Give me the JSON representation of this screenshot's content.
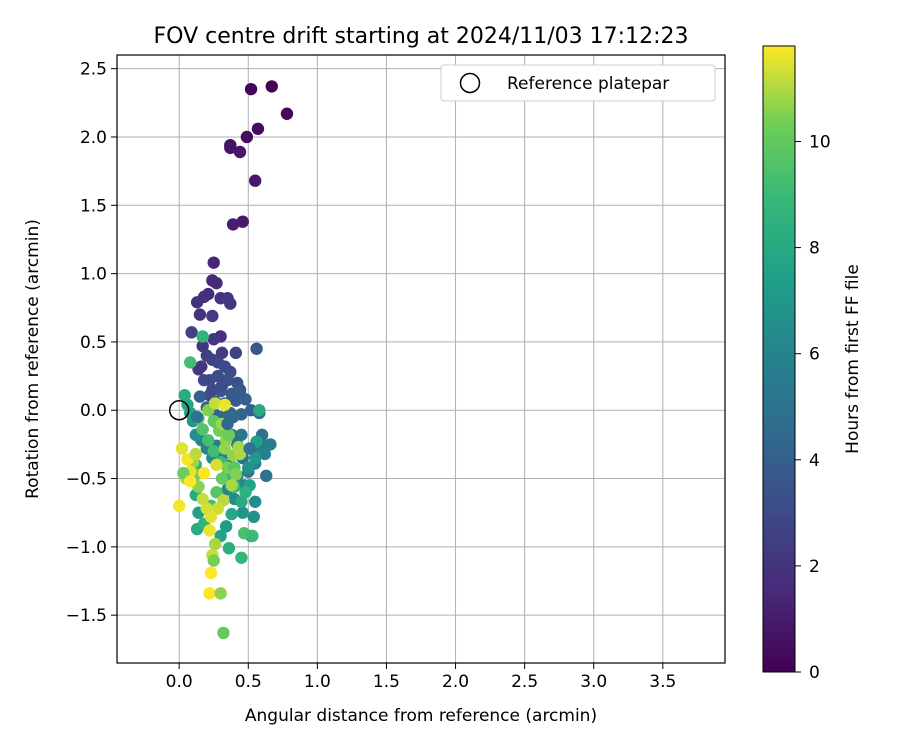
{
  "chart_data": {
    "type": "scatter",
    "title": "FOV centre drift starting at 2024/11/03 17:12:23",
    "xlabel": "Angular distance from reference (arcmin)",
    "ylabel": "Rotation from reference (arcmin)",
    "xlim": [
      -0.45,
      3.95
    ],
    "ylim": [
      -1.85,
      2.6
    ],
    "x_ticks": [
      0.0,
      0.5,
      1.0,
      1.5,
      2.0,
      2.5,
      3.0,
      3.5
    ],
    "y_ticks": [
      -1.5,
      -1.0,
      -0.5,
      0.0,
      0.5,
      1.0,
      1.5,
      2.0,
      2.5
    ],
    "grid": true,
    "legend": {
      "position": "top-right",
      "entries": [
        "Reference platepar"
      ]
    },
    "reference_point": {
      "x": 0.0,
      "y": 0.0,
      "marker": "open-circle"
    },
    "colorbar": {
      "label": "Hours from first FF file",
      "range": [
        0,
        11.8
      ],
      "ticks": [
        0,
        2,
        4,
        6,
        8,
        10
      ],
      "colormap": "viridis"
    },
    "series": [
      {
        "points": [
          [
            0.67,
            2.37,
            0.1
          ],
          [
            0.52,
            2.35,
            0.2
          ],
          [
            0.78,
            2.17,
            0.3
          ],
          [
            0.57,
            2.06,
            0.4
          ],
          [
            0.49,
            2.0,
            0.5
          ],
          [
            0.37,
            1.94,
            0.6
          ],
          [
            0.37,
            1.92,
            0.7
          ],
          [
            0.44,
            1.89,
            0.8
          ],
          [
            0.55,
            1.68,
            0.9
          ],
          [
            0.46,
            1.38,
            1.0
          ],
          [
            0.39,
            1.36,
            1.1
          ],
          [
            0.25,
            1.08,
            1.4
          ],
          [
            0.24,
            0.95,
            1.5
          ],
          [
            0.27,
            0.93,
            1.6
          ],
          [
            0.21,
            0.85,
            1.7
          ],
          [
            0.18,
            0.83,
            1.8
          ],
          [
            0.13,
            0.79,
            1.9
          ],
          [
            0.3,
            0.82,
            2.0
          ],
          [
            0.35,
            0.82,
            2.1
          ],
          [
            0.37,
            0.78,
            2.2
          ],
          [
            0.15,
            0.7,
            1.9
          ],
          [
            0.24,
            0.69,
            2.3
          ],
          [
            0.09,
            0.57,
            2.6
          ],
          [
            0.3,
            0.54,
            1.8
          ],
          [
            0.25,
            0.52,
            2.1
          ],
          [
            0.17,
            0.47,
            2.2
          ],
          [
            0.31,
            0.42,
            2.4
          ],
          [
            0.41,
            0.42,
            2.7
          ],
          [
            0.56,
            0.45,
            3.6
          ],
          [
            0.2,
            0.4,
            2.5
          ],
          [
            0.24,
            0.37,
            2.6
          ],
          [
            0.28,
            0.35,
            2.8
          ],
          [
            0.33,
            0.32,
            3.0
          ],
          [
            0.37,
            0.28,
            3.0
          ],
          [
            0.16,
            0.32,
            2.3
          ],
          [
            0.14,
            0.3,
            2.2
          ],
          [
            0.22,
            0.22,
            3.1
          ],
          [
            0.28,
            0.25,
            3.2
          ],
          [
            0.35,
            0.22,
            3.3
          ],
          [
            0.42,
            0.2,
            3.4
          ],
          [
            0.44,
            0.15,
            3.6
          ],
          [
            0.38,
            0.12,
            3.7
          ],
          [
            0.3,
            0.14,
            3.5
          ],
          [
            0.22,
            0.11,
            3.3
          ],
          [
            0.26,
            0.06,
            3.4
          ],
          [
            0.33,
            0.05,
            3.6
          ],
          [
            0.41,
            0.07,
            3.8
          ],
          [
            0.48,
            0.08,
            4.0
          ],
          [
            0.52,
            0.0,
            4.2
          ],
          [
            0.45,
            -0.03,
            4.3
          ],
          [
            0.37,
            -0.02,
            4.1
          ],
          [
            0.3,
            -0.05,
            4.5
          ],
          [
            0.25,
            -0.02,
            4.4
          ],
          [
            0.2,
            0.02,
            3.9
          ],
          [
            0.58,
            -0.02,
            4.8
          ],
          [
            0.6,
            -0.18,
            5.0
          ],
          [
            0.56,
            -0.25,
            5.2
          ],
          [
            0.6,
            -0.25,
            5.4
          ],
          [
            0.66,
            -0.25,
            5.5
          ],
          [
            0.62,
            -0.32,
            5.8
          ],
          [
            0.57,
            -0.32,
            5.7
          ],
          [
            0.55,
            -0.39,
            5.9
          ],
          [
            0.63,
            -0.48,
            5.0
          ],
          [
            0.5,
            -0.45,
            5.6
          ],
          [
            0.46,
            -0.35,
            5.1
          ],
          [
            0.42,
            -0.25,
            4.9
          ],
          [
            0.38,
            -0.18,
            4.7
          ],
          [
            0.33,
            -0.12,
            4.6
          ],
          [
            0.28,
            -0.1,
            4.9
          ],
          [
            0.47,
            -0.55,
            6.2
          ],
          [
            0.55,
            -0.67,
            6.5
          ],
          [
            0.54,
            -0.78,
            6.8
          ],
          [
            0.52,
            -0.92,
            7.2
          ],
          [
            0.46,
            -0.75,
            6.9
          ],
          [
            0.4,
            -0.65,
            6.4
          ],
          [
            0.35,
            -0.58,
            6.1
          ],
          [
            0.42,
            -0.48,
            6.0
          ],
          [
            0.37,
            -0.4,
            5.8
          ],
          [
            0.32,
            -0.32,
            5.6
          ],
          [
            0.27,
            -0.26,
            5.4
          ],
          [
            0.24,
            -0.35,
            6.3
          ],
          [
            0.2,
            -0.28,
            5.9
          ],
          [
            0.16,
            -0.22,
            6.1
          ],
          [
            0.12,
            -0.18,
            6.6
          ],
          [
            0.1,
            -0.08,
            7.0
          ],
          [
            0.08,
            -0.02,
            7.4
          ],
          [
            0.06,
            0.04,
            7.8
          ],
          [
            0.04,
            0.11,
            8.2
          ],
          [
            0.08,
            0.35,
            9.2
          ],
          [
            0.17,
            0.54,
            8.6
          ],
          [
            0.58,
            0.0,
            8.0
          ],
          [
            0.56,
            -0.23,
            7.5
          ],
          [
            0.55,
            -0.35,
            7.1
          ],
          [
            0.51,
            -0.55,
            7.6
          ],
          [
            0.45,
            -0.67,
            8.1
          ],
          [
            0.38,
            -0.76,
            7.9
          ],
          [
            0.34,
            -0.85,
            7.3
          ],
          [
            0.3,
            -0.92,
            7.7
          ],
          [
            0.36,
            -1.01,
            8.3
          ],
          [
            0.45,
            -1.08,
            8.8
          ],
          [
            0.47,
            -0.9,
            9.4
          ],
          [
            0.53,
            -0.92,
            9.0
          ],
          [
            0.4,
            -0.56,
            8.7
          ],
          [
            0.35,
            -0.47,
            8.4
          ],
          [
            0.3,
            -0.38,
            8.9
          ],
          [
            0.25,
            -0.3,
            9.1
          ],
          [
            0.21,
            -0.22,
            9.3
          ],
          [
            0.17,
            -0.14,
            9.6
          ],
          [
            0.14,
            -0.06,
            9.9
          ],
          [
            0.12,
            -0.4,
            8.5
          ],
          [
            0.1,
            -0.52,
            9.5
          ],
          [
            0.12,
            -0.62,
            8.0
          ],
          [
            0.14,
            -0.75,
            7.5
          ],
          [
            0.13,
            -0.87,
            8.1
          ],
          [
            0.18,
            -0.83,
            8.6
          ],
          [
            0.23,
            -0.7,
            9.2
          ],
          [
            0.27,
            -0.6,
            9.7
          ],
          [
            0.31,
            -0.5,
            10.1
          ],
          [
            0.35,
            -0.42,
            10.4
          ],
          [
            0.39,
            -0.33,
            10.7
          ],
          [
            0.43,
            -0.27,
            10.9
          ],
          [
            0.34,
            -0.22,
            10.6
          ],
          [
            0.29,
            -0.15,
            10.3
          ],
          [
            0.25,
            -0.08,
            10.0
          ],
          [
            0.21,
            0.0,
            10.5
          ],
          [
            0.26,
            0.05,
            11.2
          ],
          [
            0.33,
            0.04,
            11.6
          ],
          [
            0.31,
            -0.1,
            10.8
          ],
          [
            0.36,
            -0.18,
            10.2
          ],
          [
            0.4,
            -0.42,
            9.8
          ],
          [
            0.44,
            -0.32,
            11.0
          ],
          [
            0.41,
            -0.47,
            10.5
          ],
          [
            0.38,
            -0.55,
            10.9
          ],
          [
            0.32,
            -0.66,
            11.1
          ],
          [
            0.28,
            -0.72,
            11.3
          ],
          [
            0.23,
            -0.78,
            11.5
          ],
          [
            0.2,
            -0.72,
            11.4
          ],
          [
            0.17,
            -0.65,
            11.2
          ],
          [
            0.14,
            -0.56,
            10.6
          ],
          [
            0.12,
            -0.47,
            10.3
          ],
          [
            0.1,
            -0.38,
            10.8
          ],
          [
            0.08,
            -0.45,
            11.6
          ],
          [
            0.05,
            -0.5,
            11.0
          ],
          [
            0.03,
            -0.46,
            10.2
          ],
          [
            0.06,
            -0.36,
            11.7
          ],
          [
            0.02,
            -0.28,
            11.5
          ],
          [
            0.08,
            -0.52,
            11.8
          ],
          [
            0.0,
            -0.7,
            11.7
          ],
          [
            0.22,
            -0.88,
            11.6
          ],
          [
            0.26,
            -0.98,
            10.9
          ],
          [
            0.24,
            -1.06,
            11.2
          ],
          [
            0.25,
            -1.1,
            10.4
          ],
          [
            0.23,
            -1.19,
            11.8
          ],
          [
            0.22,
            -1.34,
            11.9
          ],
          [
            0.3,
            -1.34,
            10.6
          ],
          [
            0.32,
            -1.63,
            10.1
          ],
          [
            0.12,
            -0.32,
            11.1
          ],
          [
            0.18,
            -0.46,
            11.9
          ],
          [
            0.27,
            -0.4,
            11.4
          ],
          [
            0.33,
            -0.28,
            10.7
          ],
          [
            0.48,
            -0.6,
            8.5
          ],
          [
            0.5,
            -0.42,
            6.8
          ],
          [
            0.45,
            -0.18,
            5.3
          ],
          [
            0.51,
            -0.28,
            5.0
          ],
          [
            0.35,
            -0.1,
            4.4
          ],
          [
            0.39,
            -0.05,
            4.6
          ],
          [
            0.31,
            0.18,
            3.2
          ],
          [
            0.44,
            0.12,
            3.8
          ],
          [
            0.24,
            0.15,
            3.0
          ],
          [
            0.18,
            0.22,
            2.9
          ],
          [
            0.15,
            0.1,
            4.0
          ],
          [
            0.13,
            -0.05,
            5.0
          ]
        ]
      }
    ]
  }
}
